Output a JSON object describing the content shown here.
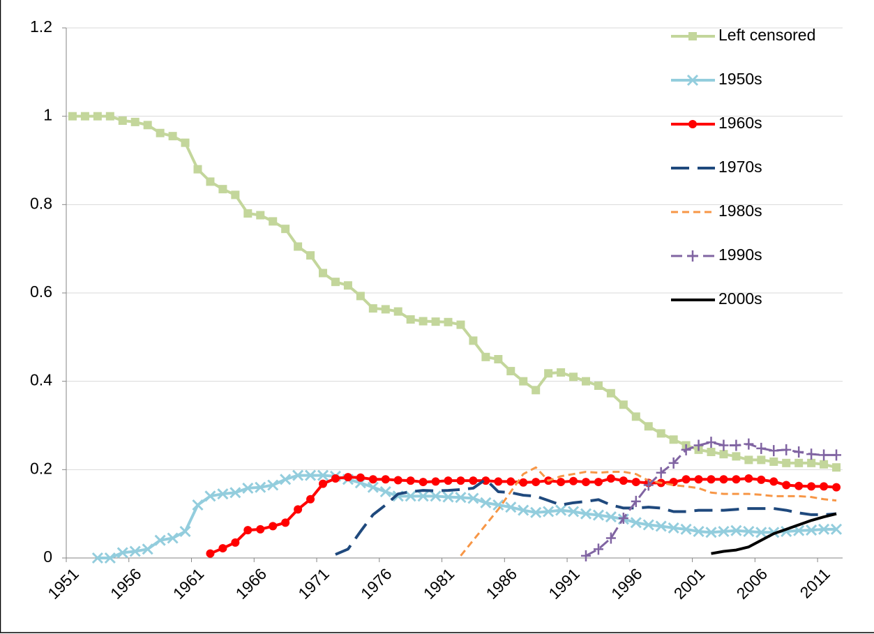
{
  "chart_data": {
    "type": "line",
    "categories": [
      "1951",
      null,
      null,
      null,
      null,
      "1956",
      null,
      null,
      null,
      null,
      "1961",
      null,
      null,
      null,
      null,
      "1966",
      null,
      null,
      null,
      null,
      "1971",
      null,
      null,
      null,
      null,
      "1976",
      null,
      null,
      null,
      null,
      "1981",
      null,
      null,
      null,
      null,
      "1986",
      null,
      null,
      null,
      null,
      "1991",
      null,
      null,
      null,
      null,
      "1996",
      null,
      null,
      null,
      null,
      "2001",
      null,
      null,
      null,
      null,
      "2006",
      null,
      null,
      null,
      null,
      "2011",
      null
    ],
    "ylim": [
      0,
      1.2
    ],
    "yticks": [
      0,
      0.2,
      0.4,
      0.6,
      0.8,
      1,
      1.2
    ],
    "grid": true,
    "legend": "right",
    "series": [
      {
        "name": "Left censored",
        "color": "#c3d69b",
        "marker": "square",
        "dash": "solid",
        "values": [
          1.0,
          1.0,
          1.0,
          1.0,
          0.99,
          0.987,
          0.98,
          0.962,
          0.955,
          0.94,
          0.88,
          0.852,
          0.835,
          0.822,
          0.78,
          0.776,
          0.762,
          0.745,
          0.705,
          0.685,
          0.645,
          0.625,
          0.617,
          0.593,
          0.565,
          0.563,
          0.558,
          0.54,
          0.536,
          0.535,
          0.534,
          0.528,
          0.492,
          0.455,
          0.45,
          0.423,
          0.4,
          0.38,
          0.418,
          0.42,
          0.41,
          0.4,
          0.39,
          0.373,
          0.347,
          0.32,
          0.298,
          0.282,
          0.268,
          0.255,
          0.245,
          0.24,
          0.235,
          0.23,
          0.222,
          0.222,
          0.218,
          0.215,
          0.215,
          0.215,
          0.212,
          0.205
        ]
      },
      {
        "name": "1950s",
        "color": "#93cddd",
        "marker": "x",
        "dash": "solid",
        "values": [
          null,
          null,
          0,
          0,
          0.012,
          0.015,
          0.02,
          0.04,
          0.045,
          0.06,
          0.12,
          0.14,
          0.145,
          0.148,
          0.158,
          0.16,
          0.165,
          0.178,
          0.187,
          0.187,
          0.187,
          0.185,
          0.178,
          0.17,
          0.16,
          0.15,
          0.14,
          0.14,
          0.14,
          0.14,
          0.138,
          0.137,
          0.135,
          0.125,
          0.12,
          0.115,
          0.108,
          0.103,
          0.105,
          0.108,
          0.105,
          0.1,
          0.097,
          0.093,
          0.088,
          0.08,
          0.075,
          0.072,
          0.068,
          0.065,
          0.06,
          0.058,
          0.06,
          0.062,
          0.06,
          0.058,
          0.058,
          0.06,
          0.062,
          0.063,
          0.065,
          0.065
        ]
      },
      {
        "name": "1960s",
        "color": "#ff0000",
        "marker": "circle",
        "dash": "solid",
        "values": [
          null,
          null,
          null,
          null,
          null,
          null,
          null,
          null,
          null,
          null,
          null,
          0.01,
          0.022,
          0.035,
          0.063,
          0.065,
          0.072,
          0.08,
          0.11,
          0.133,
          0.168,
          0.18,
          0.183,
          0.182,
          0.178,
          0.178,
          0.176,
          0.175,
          0.172,
          0.173,
          0.175,
          0.175,
          0.175,
          0.175,
          0.173,
          0.173,
          0.171,
          0.172,
          0.175,
          0.172,
          0.174,
          0.172,
          0.172,
          0.18,
          0.175,
          0.172,
          0.17,
          0.17,
          0.172,
          0.178,
          0.178,
          0.178,
          0.178,
          0.178,
          0.18,
          0.177,
          0.173,
          0.165,
          0.163,
          0.162,
          0.162,
          0.16
        ]
      },
      {
        "name": "1970s",
        "color": "#1f497d",
        "marker": "none",
        "dash": "long",
        "values": [
          null,
          null,
          null,
          null,
          null,
          null,
          null,
          null,
          null,
          null,
          null,
          null,
          null,
          null,
          null,
          null,
          null,
          null,
          null,
          null,
          null,
          0.008,
          0.02,
          0.06,
          0.098,
          0.12,
          0.145,
          0.15,
          0.153,
          0.152,
          0.153,
          0.155,
          0.158,
          0.178,
          0.15,
          0.148,
          0.142,
          0.14,
          0.13,
          0.12,
          0.125,
          0.128,
          0.132,
          0.12,
          0.113,
          0.113,
          0.115,
          0.113,
          0.105,
          0.105,
          0.108,
          0.108,
          0.108,
          0.11,
          0.112,
          0.112,
          0.112,
          0.108,
          0.102,
          0.098,
          0.098,
          0.1
        ]
      },
      {
        "name": "1980s",
        "color": "#f79646",
        "marker": "none",
        "dash": "short",
        "values": [
          null,
          null,
          null,
          null,
          null,
          null,
          null,
          null,
          null,
          null,
          null,
          null,
          null,
          null,
          null,
          null,
          null,
          null,
          null,
          null,
          null,
          null,
          null,
          null,
          null,
          null,
          null,
          null,
          null,
          null,
          null,
          0.005,
          0.04,
          0.075,
          0.11,
          0.15,
          0.19,
          0.205,
          0.175,
          0.185,
          0.19,
          0.195,
          0.193,
          0.195,
          0.195,
          0.19,
          0.175,
          0.17,
          0.165,
          0.162,
          0.158,
          0.148,
          0.145,
          0.145,
          0.145,
          0.143,
          0.14,
          0.14,
          0.14,
          0.138,
          0.133,
          0.13
        ]
      },
      {
        "name": "1990s",
        "color": "#8064a2",
        "marker": "plus",
        "dash": "medium",
        "values": [
          null,
          null,
          null,
          null,
          null,
          null,
          null,
          null,
          null,
          null,
          null,
          null,
          null,
          null,
          null,
          null,
          null,
          null,
          null,
          null,
          null,
          null,
          null,
          null,
          null,
          null,
          null,
          null,
          null,
          null,
          null,
          null,
          null,
          null,
          null,
          null,
          null,
          null,
          null,
          null,
          null,
          0.005,
          0.02,
          0.045,
          0.09,
          0.128,
          0.165,
          0.193,
          0.215,
          0.245,
          0.255,
          0.262,
          0.255,
          0.255,
          0.258,
          0.248,
          0.243,
          0.245,
          0.24,
          0.235,
          0.233,
          0.233
        ]
      },
      {
        "name": "2000s",
        "color": "#000000",
        "marker": "none",
        "dash": "solid",
        "values": [
          null,
          null,
          null,
          null,
          null,
          null,
          null,
          null,
          null,
          null,
          null,
          null,
          null,
          null,
          null,
          null,
          null,
          null,
          null,
          null,
          null,
          null,
          null,
          null,
          null,
          null,
          null,
          null,
          null,
          null,
          null,
          null,
          null,
          null,
          null,
          null,
          null,
          null,
          null,
          null,
          null,
          null,
          null,
          null,
          null,
          null,
          null,
          null,
          null,
          null,
          null,
          0.01,
          0.015,
          0.018,
          0.025,
          0.04,
          0.055,
          0.065,
          0.075,
          0.085,
          0.093,
          0.1
        ]
      }
    ]
  }
}
